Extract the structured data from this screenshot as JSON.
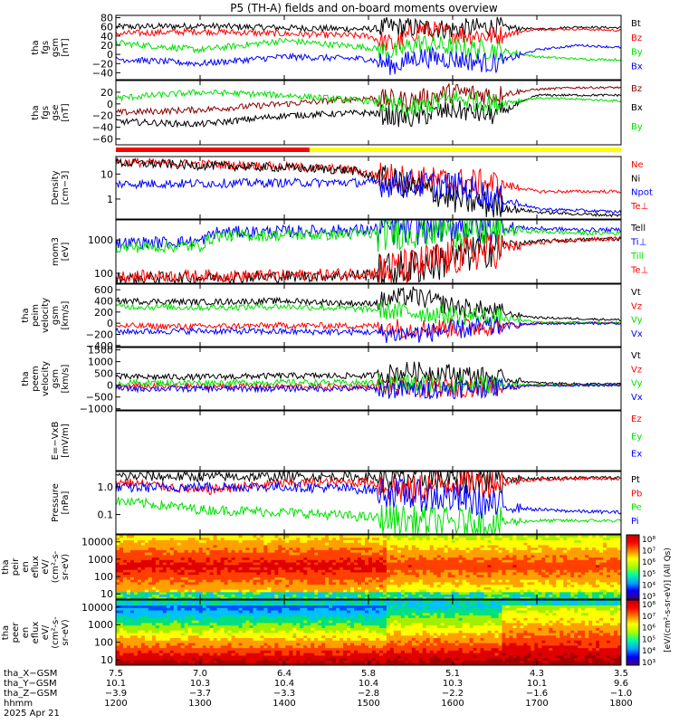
{
  "title": "P5 (TH-A) fields and on-board moments overview",
  "colors": {
    "black": "#000000",
    "red": "#ff0000",
    "green": "#00e000",
    "blue": "#0000ff",
    "darkred": "#8b0000",
    "yellow": "#ffff00"
  },
  "status_bar": {
    "red_until": 1430,
    "colors": [
      "red",
      "yellow"
    ]
  },
  "chart_data": [
    {
      "type": "line",
      "ylabel_lines": [
        "tha",
        "fgs",
        "gsm",
        "[nT]"
      ],
      "ticks": [
        "80",
        "60",
        "40",
        "20",
        "0",
        "−20",
        "−40"
      ],
      "ylim": [
        -55,
        85
      ],
      "series": [
        {
          "name": "Bt",
          "color": "black",
          "x": [
            1200,
            1300,
            1400,
            1500,
            1530,
            1560,
            1600,
            1650,
            1700,
            1750,
            1800
          ],
          "y": [
            60,
            62,
            58,
            55,
            60,
            58,
            55,
            60,
            55,
            60,
            58
          ]
        },
        {
          "name": "Bz",
          "color": "red",
          "x": [
            1200,
            1300,
            1400,
            1500,
            1530,
            1560,
            1600,
            1650,
            1700,
            1750,
            1800
          ],
          "y": [
            45,
            50,
            45,
            40,
            20,
            55,
            45,
            40,
            55,
            55,
            52
          ]
        },
        {
          "name": "By",
          "color": "green",
          "x": [
            1200,
            1300,
            1400,
            1500,
            1530,
            1560,
            1600,
            1650,
            1700,
            1750,
            1800
          ],
          "y": [
            25,
            10,
            30,
            15,
            5,
            25,
            15,
            10,
            -5,
            -10,
            -12
          ]
        },
        {
          "name": "Bx",
          "color": "blue",
          "x": [
            1200,
            1300,
            1400,
            1500,
            1530,
            1560,
            1600,
            1650,
            1700,
            1750,
            1800
          ],
          "y": [
            -10,
            -20,
            -5,
            -10,
            -25,
            -5,
            -10,
            -20,
            10,
            20,
            15
          ]
        }
      ]
    },
    {
      "type": "line",
      "ylabel_lines": [
        "tha",
        "fgs",
        "gse",
        "[nT]"
      ],
      "ticks": [
        "20",
        "0",
        "−20",
        "−40",
        "−60"
      ],
      "ylim": [
        -70,
        40
      ],
      "series": [
        {
          "name": "Bz",
          "color": "darkred",
          "x": [
            1200,
            1300,
            1400,
            1500,
            1550,
            1600,
            1650,
            1700,
            1750,
            1800
          ],
          "y": [
            -15,
            -10,
            0,
            10,
            5,
            20,
            15,
            25,
            28,
            28
          ]
        },
        {
          "name": "Bx",
          "color": "black",
          "x": [
            1200,
            1300,
            1400,
            1500,
            1550,
            1600,
            1650,
            1700,
            1750,
            1800
          ],
          "y": [
            -30,
            -35,
            -20,
            -15,
            -25,
            -10,
            -20,
            15,
            15,
            15
          ]
        },
        {
          "name": "By",
          "color": "green",
          "x": [
            1200,
            1300,
            1400,
            1500,
            1550,
            1600,
            1650,
            1700,
            1750,
            1800
          ],
          "y": [
            10,
            20,
            15,
            5,
            -10,
            10,
            0,
            10,
            8,
            5
          ]
        }
      ]
    },
    {
      "type": "line",
      "scale": "log",
      "ylabel_lines": [
        "Density",
        "[cm−3]"
      ],
      "ticks": [
        {
          "v": 10,
          "t": "10"
        },
        {
          "v": 1,
          "t": "1"
        }
      ],
      "ylim_log": [
        -0.8,
        1.7
      ],
      "series": [
        {
          "name": "Ne",
          "color": "red",
          "x": [
            1200,
            1300,
            1400,
            1480,
            1500,
            1550,
            1600,
            1650,
            1700,
            1750,
            1800
          ],
          "y": [
            30,
            25,
            20,
            15,
            10,
            6,
            5,
            4,
            2,
            2,
            2
          ]
        },
        {
          "name": "Ni",
          "color": "black",
          "x": [
            1200,
            1300,
            1400,
            1480,
            1500,
            1550,
            1600,
            1650,
            1700,
            1750,
            1800
          ],
          "y": [
            28,
            22,
            18,
            14,
            8,
            3,
            1,
            0.5,
            0.3,
            0.25,
            0.22
          ]
        },
        {
          "name": "Npot",
          "color": "blue",
          "x": [
            1200,
            1300,
            1400,
            1480,
            1500,
            1550,
            1600,
            1650,
            1700,
            1750,
            1800
          ],
          "y": [
            4,
            4.2,
            4.5,
            4.6,
            4.5,
            4,
            3.5,
            1,
            0.4,
            0.35,
            0.3
          ]
        },
        {
          "name": "Te⊥",
          "color": "red",
          "x": [],
          "y": []
        }
      ]
    },
    {
      "type": "line",
      "scale": "log",
      "ylabel_lines": [
        "mom3",
        "[eV]"
      ],
      "ticks": [
        {
          "v": 1000,
          "t": "1000"
        },
        {
          "v": 100,
          "t": "100"
        }
      ],
      "ylim_log": [
        1.7,
        3.6
      ],
      "series": [
        {
          "name": "Tell",
          "color": "black",
          "x": [
            1200,
            1300,
            1400,
            1500,
            1550,
            1600,
            1650,
            1700,
            1750,
            1800
          ],
          "y": [
            70,
            75,
            80,
            90,
            150,
            250,
            600,
            900,
            1000,
            1100
          ]
        },
        {
          "name": "Ti⊥",
          "color": "blue",
          "x": [
            1200,
            1300,
            1320,
            1400,
            1500,
            1550,
            1600,
            1650,
            1700,
            1750,
            1800
          ],
          "y": [
            800,
            900,
            1700,
            1800,
            2000,
            2500,
            3000,
            2500,
            2200,
            2000,
            2000
          ]
        },
        {
          "name": "Till",
          "color": "green",
          "x": [
            1200,
            1300,
            1320,
            1400,
            1500,
            1550,
            1600,
            1650,
            1700,
            1750,
            1800
          ],
          "y": [
            600,
            650,
            1300,
            1400,
            1500,
            2000,
            2200,
            2000,
            1800,
            1600,
            1600
          ]
        },
        {
          "name": "Te⊥",
          "color": "red",
          "x": [
            1200,
            1300,
            1400,
            1500,
            1550,
            1600,
            1650,
            1700,
            1750,
            1800
          ],
          "y": [
            80,
            85,
            85,
            100,
            150,
            300,
            500,
            800,
            1000,
            1100
          ]
        }
      ]
    },
    {
      "type": "line",
      "ylabel_lines": [
        "tha",
        "peim",
        "velocity",
        "gsm",
        "[km/s]"
      ],
      "ticks": [
        "600",
        "400",
        "200",
        "0",
        "−200",
        "−400"
      ],
      "ylim": [
        -420,
        700
      ],
      "series": [
        {
          "name": "Vt",
          "color": "black",
          "x": [
            1200,
            1300,
            1400,
            1500,
            1550,
            1600,
            1650,
            1700,
            1750,
            1800
          ],
          "y": [
            400,
            380,
            400,
            350,
            500,
            300,
            200,
            100,
            80,
            60
          ]
        },
        {
          "name": "Vz",
          "color": "red",
          "x": [
            1200,
            1300,
            1400,
            1500,
            1550,
            1600,
            1650,
            1700,
            1750,
            1800
          ],
          "y": [
            -50,
            -60,
            -40,
            -50,
            -100,
            -80,
            -50,
            0,
            10,
            5
          ]
        },
        {
          "name": "Vy",
          "color": "green",
          "x": [
            1200,
            1300,
            1400,
            1500,
            1550,
            1600,
            1650,
            1700,
            1750,
            1800
          ],
          "y": [
            300,
            280,
            300,
            250,
            200,
            150,
            100,
            20,
            10,
            10
          ]
        },
        {
          "name": "Vx",
          "color": "blue",
          "x": [
            1200,
            1300,
            1400,
            1500,
            1550,
            1600,
            1650,
            1700,
            1750,
            1800
          ],
          "y": [
            -150,
            -140,
            -150,
            -160,
            -200,
            -120,
            -60,
            -10,
            -5,
            -5
          ]
        }
      ]
    },
    {
      "type": "line",
      "ylabel_lines": [
        "tha",
        "peem",
        "velocity",
        "gsm",
        "[km/s]"
      ],
      "ticks": [
        "1500",
        "1000",
        "500",
        "0",
        "−500",
        "−1000"
      ],
      "ylim": [
        -1050,
        1600
      ],
      "series": [
        {
          "name": "Vt",
          "color": "black",
          "x": [
            1200,
            1300,
            1400,
            1500,
            1550,
            1600,
            1650,
            1700,
            1750,
            1800
          ],
          "y": [
            350,
            350,
            400,
            400,
            600,
            500,
            300,
            100,
            60,
            50
          ]
        },
        {
          "name": "Vz",
          "color": "red",
          "x": [
            1200,
            1300,
            1400,
            1500,
            1550,
            1600,
            1650,
            1700,
            1750,
            1800
          ],
          "y": [
            -50,
            -50,
            -60,
            -60,
            -100,
            -80,
            -50,
            0,
            0,
            0
          ]
        },
        {
          "name": "Vy",
          "color": "green",
          "x": [
            1200,
            1300,
            1400,
            1500,
            1550,
            1600,
            1650,
            1700,
            1750,
            1800
          ],
          "y": [
            100,
            100,
            120,
            100,
            50,
            50,
            30,
            0,
            0,
            0
          ]
        },
        {
          "name": "Vx",
          "color": "blue",
          "x": [
            1200,
            1300,
            1400,
            1500,
            1550,
            1600,
            1650,
            1700,
            1750,
            1800
          ],
          "y": [
            -150,
            -150,
            -140,
            -150,
            -200,
            -150,
            -80,
            -10,
            -5,
            -5
          ]
        }
      ]
    },
    {
      "type": "line",
      "ylabel_lines": [
        "E=−VxB",
        "[mV/m]"
      ],
      "ticks": [],
      "ylim": [
        -1,
        1
      ],
      "series": [
        {
          "name": "Ez",
          "color": "red",
          "x": [],
          "y": []
        },
        {
          "name": "Ey",
          "color": "green",
          "x": [],
          "y": []
        },
        {
          "name": "Ex",
          "color": "blue",
          "x": [],
          "y": []
        }
      ]
    },
    {
      "type": "line",
      "scale": "log",
      "ylabel_lines": [
        "Pressure",
        "[nPa]"
      ],
      "ticks": [
        {
          "v": 1,
          "t": "1.0"
        },
        {
          "v": 0.1,
          "t": "0.1"
        }
      ],
      "ylim_log": [
        -1.7,
        0.55
      ],
      "series": [
        {
          "name": "Pt",
          "color": "black",
          "x": [
            1200,
            1300,
            1400,
            1500,
            1550,
            1600,
            1650,
            1700,
            1750,
            1800
          ],
          "y": [
            2.4,
            2.3,
            2.3,
            2.2,
            2.2,
            2.1,
            2,
            2,
            2.1,
            2.1
          ]
        },
        {
          "name": "Pb",
          "color": "red",
          "x": [
            1200,
            1300,
            1400,
            1500,
            1550,
            1600,
            1650,
            1700,
            1750,
            1800
          ],
          "y": [
            1.5,
            0.7,
            1.3,
            1.5,
            0.6,
            1.6,
            1.5,
            1.8,
            2,
            2
          ]
        },
        {
          "name": "Pe",
          "color": "green",
          "x": [
            1200,
            1300,
            1400,
            1500,
            1550,
            1600,
            1650,
            1700,
            1750,
            1800
          ],
          "y": [
            0.3,
            0.15,
            0.12,
            0.08,
            0.06,
            0.05,
            0.05,
            0.06,
            0.06,
            0.06
          ]
        },
        {
          "name": "Pi",
          "color": "blue",
          "x": [
            1200,
            1300,
            1400,
            1500,
            1550,
            1600,
            1650,
            1700,
            1750,
            1800
          ],
          "y": [
            0.9,
            1,
            1,
            0.8,
            0.5,
            0.4,
            0.2,
            0.15,
            0.13,
            0.12
          ]
        }
      ]
    },
    {
      "type": "heatmap",
      "ylabel_lines": [
        "tha",
        "peir",
        "en",
        "eflux",
        "eV/",
        "(cm²-s-",
        "sr-eV)"
      ],
      "ticks": [
        {
          "v": 10000,
          "t": "10000"
        },
        {
          "v": 1000,
          "t": "1000"
        },
        {
          "v": 100,
          "t": "100"
        },
        {
          "v": 10,
          "t": "10"
        }
      ],
      "ylim_log": [
        0.7,
        4.4
      ]
    },
    {
      "type": "heatmap",
      "ylabel_lines": [
        "tha",
        "peer",
        "en",
        "eflux",
        "eV/",
        "(cm²-s-",
        "sr-eV)"
      ],
      "ticks": [
        {
          "v": 10000,
          "t": "10000"
        },
        {
          "v": 1000,
          "t": "1000"
        },
        {
          "v": 100,
          "t": "100"
        },
        {
          "v": 10,
          "t": "10"
        }
      ],
      "ylim_log": [
        0.7,
        4.4
      ]
    }
  ],
  "colorbar": {
    "label": "[eV/(cm²-s-sr-eV)] (All Qs)",
    "upper_ticks": [
      "10⁸",
      "10⁷",
      "10⁶",
      "10⁵",
      "10⁴",
      "10³"
    ],
    "lower_ticks": [
      "10⁸",
      "10⁷",
      "10⁶",
      "10⁵",
      "10⁴",
      "10³"
    ]
  },
  "x_axis": {
    "xlim": [
      1200,
      1800
    ],
    "row_labels": [
      "tha_X−GSM",
      "tha_Y−GSM",
      "tha_Z−GSM",
      "hhmm",
      "2025 Apr 21"
    ],
    "columns": [
      {
        "x": 1200,
        "vals": [
          "7.5",
          "10.1",
          "−3.9",
          "1200"
        ]
      },
      {
        "x": 1300,
        "vals": [
          "7.0",
          "10.3",
          "−3.7",
          "1300"
        ]
      },
      {
        "x": 1400,
        "vals": [
          "6.4",
          "10.4",
          "−3.3",
          "1400"
        ]
      },
      {
        "x": 1500,
        "vals": [
          "5.8",
          "10.4",
          "−2.8",
          "1500"
        ]
      },
      {
        "x": 1600,
        "vals": [
          "5.1",
          "10.3",
          "−2.2",
          "1600"
        ]
      },
      {
        "x": 1700,
        "vals": [
          "4.3",
          "10.1",
          "−1.6",
          "1700"
        ]
      },
      {
        "x": 1800,
        "vals": [
          "3.5",
          "9.6",
          "−1.0",
          "1800"
        ]
      }
    ]
  }
}
